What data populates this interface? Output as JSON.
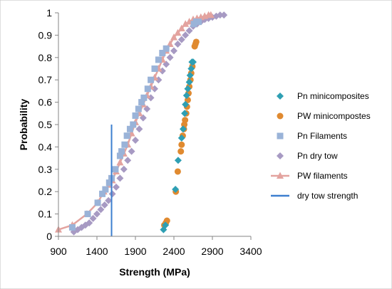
{
  "chart_data": {
    "type": "scatter",
    "xlabel": "Strength (MPa)",
    "ylabel": "Probability",
    "xlim": [
      900,
      3400
    ],
    "ylim": [
      0,
      1
    ],
    "x_ticks": [
      "900",
      "1400",
      "1900",
      "2400",
      "2900",
      "3400"
    ],
    "y_ticks": [
      "0",
      "0.1",
      "0.2",
      "0.3",
      "0.4",
      "0.5",
      "0.6",
      "0.7",
      "0.8",
      "0.9",
      "1"
    ],
    "grid": false,
    "legend_position": "right",
    "series": [
      {
        "name": "Pn minicomposites",
        "marker": "diamond",
        "color": "#2e9fb3",
        "x": [
          2265,
          2290,
          2420,
          2455,
          2500,
          2520,
          2540,
          2550,
          2565,
          2580,
          2600,
          2610,
          2625,
          2635,
          2650
        ],
        "y": [
          0.03,
          0.05,
          0.21,
          0.34,
          0.44,
          0.48,
          0.55,
          0.59,
          0.63,
          0.66,
          0.69,
          0.72,
          0.75,
          0.78,
          0.78
        ]
      },
      {
        "name": "PW minicompostes",
        "marker": "circle",
        "color": "#e08a30",
        "x": [
          2275,
          2295,
          2310,
          2425,
          2450,
          2490,
          2500,
          2515,
          2530,
          2535,
          2545,
          2560,
          2570,
          2580,
          2590,
          2600,
          2615,
          2625,
          2640,
          2670,
          2680,
          2690
        ],
        "y": [
          0.05,
          0.06,
          0.07,
          0.2,
          0.29,
          0.38,
          0.41,
          0.45,
          0.48,
          0.5,
          0.52,
          0.55,
          0.58,
          0.61,
          0.64,
          0.67,
          0.7,
          0.73,
          0.76,
          0.85,
          0.86,
          0.87
        ]
      },
      {
        "name": "Pn Filaments",
        "marker": "square",
        "color": "#9ab3d8",
        "x": [
          1080,
          1280,
          1410,
          1470,
          1510,
          1560,
          1590,
          1640,
          1700,
          1720,
          1760,
          1790,
          1830,
          1870,
          1900,
          1940,
          1980,
          2010,
          2060,
          2100,
          2150,
          2200,
          2250,
          2300,
          2660,
          2690,
          2720
        ],
        "y": [
          0.04,
          0.1,
          0.15,
          0.19,
          0.21,
          0.24,
          0.26,
          0.3,
          0.36,
          0.38,
          0.41,
          0.45,
          0.48,
          0.5,
          0.54,
          0.57,
          0.6,
          0.62,
          0.66,
          0.7,
          0.75,
          0.79,
          0.82,
          0.84,
          0.95,
          0.96,
          0.96
        ]
      },
      {
        "name": "Pn dry tow",
        "marker": "diamond",
        "color": "#a79ac3",
        "x": [
          1100,
          1150,
          1200,
          1250,
          1300,
          1350,
          1400,
          1450,
          1500,
          1550,
          1600,
          1650,
          1700,
          1750,
          1800,
          1850,
          1900,
          1950,
          2000,
          2050,
          2100,
          2150,
          2200,
          2250,
          2300,
          2350,
          2400,
          2450,
          2500,
          2550,
          2600,
          2650,
          2700,
          2750,
          2800,
          2850,
          2900,
          2950,
          3000,
          3050
        ],
        "y": [
          0.02,
          0.03,
          0.04,
          0.05,
          0.06,
          0.08,
          0.1,
          0.12,
          0.14,
          0.16,
          0.19,
          0.22,
          0.26,
          0.3,
          0.34,
          0.38,
          0.43,
          0.48,
          0.53,
          0.57,
          0.62,
          0.66,
          0.7,
          0.74,
          0.77,
          0.8,
          0.83,
          0.86,
          0.88,
          0.9,
          0.92,
          0.94,
          0.95,
          0.96,
          0.97,
          0.975,
          0.98,
          0.985,
          0.99,
          0.99
        ]
      },
      {
        "name": "PW filaments",
        "marker": "triangle-line",
        "color": "#e3a39f",
        "x": [
          900,
          1080,
          1270,
          1410,
          1490,
          1560,
          1600,
          1650,
          1700,
          1750,
          1800,
          1850,
          1900,
          1950,
          2000,
          2050,
          2100,
          2150,
          2200,
          2250,
          2300,
          2350,
          2400,
          2450,
          2500,
          2550,
          2600,
          2650,
          2700,
          2750,
          2800,
          2850,
          2880
        ],
        "y": [
          0.03,
          0.05,
          0.1,
          0.15,
          0.2,
          0.23,
          0.25,
          0.29,
          0.33,
          0.37,
          0.41,
          0.46,
          0.51,
          0.55,
          0.59,
          0.63,
          0.67,
          0.71,
          0.75,
          0.79,
          0.83,
          0.86,
          0.89,
          0.91,
          0.93,
          0.95,
          0.96,
          0.97,
          0.975,
          0.98,
          0.985,
          0.99,
          0.99
        ]
      },
      {
        "name": "dry tow strength",
        "marker": "vline",
        "color": "#3d7fcf",
        "x": [
          1590,
          1590
        ],
        "y": [
          0,
          0.5
        ]
      }
    ]
  }
}
